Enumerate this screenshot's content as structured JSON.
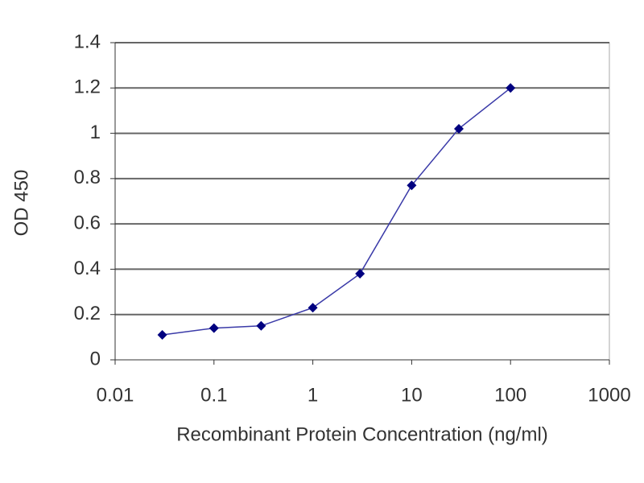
{
  "chart_data": {
    "type": "line",
    "x_label": "Recombinant Protein Concentration (ng/ml)",
    "y_label": "OD 450",
    "x": [
      0.03,
      0.1,
      0.3,
      1,
      3,
      10,
      30,
      100
    ],
    "series": [
      {
        "color": "#000080",
        "values": [
          0.11,
          0.14,
          0.15,
          0.23,
          0.38,
          0.77,
          1.02,
          1.2
        ]
      }
    ],
    "xlim": [
      0.01,
      1000
    ],
    "xticks": [
      0.01,
      0.1,
      1,
      10,
      100,
      1000
    ],
    "xlog": true,
    "ylim": [
      0,
      1.4
    ],
    "yticks": [
      0,
      0.2,
      0.4,
      0.6,
      0.8,
      1,
      1.2,
      1.4
    ],
    "grid": true
  }
}
